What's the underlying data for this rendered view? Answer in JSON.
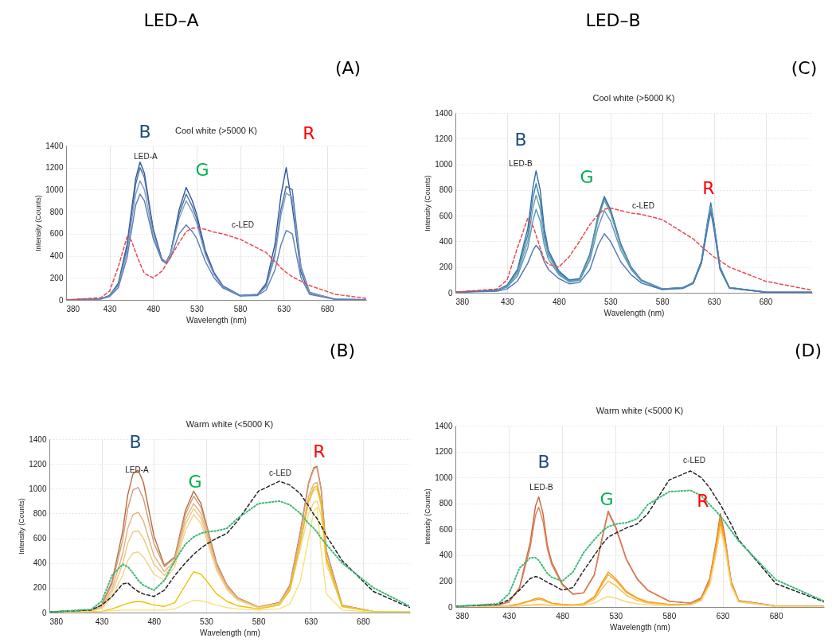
{
  "chart_data": [
    {
      "type": "line",
      "title": "Cool white (>5000 K)",
      "xlabel": "Wavelength (nm)",
      "ylabel": "Intensity (Counts)",
      "xlim": [
        380,
        725
      ],
      "xticks": [
        380,
        430,
        480,
        530,
        580,
        630,
        680
      ],
      "ylim": [
        0,
        1400
      ],
      "yticks": [
        0,
        200,
        400,
        600,
        800,
        1000,
        1200,
        1400
      ],
      "grid": true,
      "annotations": [
        "B",
        "G",
        "R",
        "LED-A",
        "c-LED",
        "LED–A",
        "(A)"
      ],
      "x": [
        380,
        420,
        430,
        440,
        450,
        455,
        460,
        465,
        470,
        480,
        490,
        495,
        500,
        510,
        518,
        525,
        530,
        540,
        550,
        560,
        580,
        600,
        610,
        620,
        627,
        633,
        640,
        650,
        660,
        690,
        725
      ],
      "series": [
        {
          "color": "#2f5597",
          "values": [
            0,
            10,
            40,
            150,
            500,
            800,
            1100,
            1250,
            1150,
            650,
            370,
            340,
            420,
            820,
            1020,
            900,
            780,
            450,
            250,
            130,
            40,
            50,
            150,
            500,
            950,
            1200,
            850,
            250,
            60,
            5,
            2
          ]
        },
        {
          "color": "#4a6fa5",
          "values": [
            0,
            10,
            40,
            140,
            470,
            760,
            1050,
            1200,
            1110,
            640,
            370,
            345,
            420,
            780,
            960,
            850,
            740,
            430,
            240,
            125,
            40,
            45,
            130,
            420,
            820,
            1030,
            1000,
            300,
            70,
            5,
            2
          ]
        },
        {
          "color": "#7f9cc7",
          "values": [
            0,
            10,
            35,
            130,
            430,
            700,
            960,
            1080,
            1000,
            590,
            360,
            345,
            410,
            740,
            900,
            800,
            700,
            410,
            230,
            120,
            38,
            45,
            120,
            390,
            770,
            970,
            930,
            280,
            65,
            5,
            2
          ]
        },
        {
          "color": "#5b7fb5",
          "values": [
            0,
            8,
            30,
            110,
            380,
            620,
            860,
            960,
            900,
            560,
            360,
            330,
            380,
            600,
            680,
            620,
            560,
            350,
            200,
            110,
            35,
            40,
            90,
            270,
            500,
            630,
            600,
            200,
            50,
            4,
            2
          ]
        },
        {
          "color": "#e8474c",
          "line_style": "dashed",
          "values": [
            0,
            20,
            80,
            300,
            570,
            540,
            430,
            330,
            240,
            200,
            260,
            320,
            390,
            520,
            620,
            650,
            655,
            640,
            615,
            600,
            550,
            470,
            430,
            350,
            290,
            250,
            210,
            170,
            130,
            50,
            15
          ]
        }
      ]
    },
    {
      "type": "line",
      "title": "Cool white (>5000 K)",
      "xlabel": "Wavelength (nm)",
      "ylabel": "Intensity (Counts)",
      "xlim": [
        380,
        725
      ],
      "xticks": [
        380,
        430,
        480,
        530,
        580,
        630,
        680
      ],
      "ylim": [
        0,
        1400
      ],
      "yticks": [
        0,
        200,
        400,
        600,
        800,
        1000,
        1200,
        1400
      ],
      "grid": true,
      "annotations": [
        "B",
        "G",
        "R",
        "LED-B",
        "c-LED",
        "LED–B",
        "(C)"
      ],
      "x": [
        380,
        420,
        430,
        440,
        450,
        455,
        458,
        462,
        466,
        470,
        480,
        490,
        500,
        510,
        518,
        524,
        530,
        540,
        550,
        560,
        580,
        600,
        610,
        618,
        624,
        627,
        630,
        636,
        645,
        680,
        725
      ],
      "series": [
        {
          "color": "#2e6da4",
          "values": [
            5,
            20,
            60,
            180,
            500,
            820,
            950,
            800,
            500,
            330,
            170,
            100,
            110,
            300,
            600,
            750,
            650,
            380,
            200,
            100,
            30,
            40,
            80,
            250,
            560,
            700,
            550,
            200,
            40,
            5,
            3
          ]
        },
        {
          "color": "#3f7fb5",
          "values": [
            5,
            20,
            55,
            170,
            450,
            740,
            850,
            720,
            460,
            310,
            160,
            95,
            105,
            290,
            590,
            740,
            640,
            370,
            195,
            95,
            30,
            40,
            80,
            245,
            550,
            680,
            540,
            195,
            40,
            5,
            3
          ]
        },
        {
          "color": "#6aa3a0",
          "values": [
            5,
            18,
            50,
            150,
            400,
            660,
            760,
            650,
            420,
            290,
            150,
            90,
            100,
            280,
            570,
            720,
            620,
            360,
            190,
            95,
            30,
            38,
            78,
            240,
            540,
            670,
            530,
            190,
            40,
            5,
            3
          ]
        },
        {
          "color": "#5a93c0",
          "values": [
            5,
            16,
            45,
            130,
            350,
            560,
            650,
            560,
            370,
            260,
            140,
            85,
            95,
            250,
            510,
            640,
            560,
            330,
            180,
            90,
            28,
            36,
            75,
            235,
            525,
            650,
            515,
            185,
            38,
            5,
            3
          ]
        },
        {
          "color": "#4a76b0",
          "values": [
            5,
            12,
            30,
            90,
            230,
            330,
            370,
            330,
            240,
            180,
            110,
            70,
            80,
            180,
            370,
            460,
            400,
            240,
            140,
            75,
            25,
            34,
            72,
            230,
            510,
            630,
            500,
            180,
            36,
            5,
            3
          ]
        },
        {
          "color": "#e8474c",
          "line_style": "dashed",
          "values": [
            5,
            30,
            100,
            350,
            580,
            520,
            450,
            350,
            260,
            220,
            200,
            280,
            400,
            530,
            610,
            650,
            660,
            640,
            620,
            610,
            570,
            470,
            420,
            360,
            320,
            300,
            280,
            250,
            200,
            90,
            20
          ]
        }
      ]
    },
    {
      "type": "line",
      "title": "Warm white (<5000 K)",
      "xlabel": "Wavelength (nm)",
      "ylabel": "Intensity (Counts)",
      "xlim": [
        380,
        725
      ],
      "xticks": [
        380,
        430,
        480,
        530,
        580,
        630,
        680
      ],
      "ylim": [
        0,
        1400
      ],
      "yticks": [
        0,
        200,
        400,
        600,
        800,
        1000,
        1200,
        1400
      ],
      "grid": true,
      "annotations": [
        "B",
        "G",
        "R",
        "LED-A",
        "c-LED",
        "(B)"
      ],
      "x": [
        380,
        420,
        430,
        440,
        450,
        455,
        460,
        465,
        470,
        480,
        490,
        500,
        510,
        518,
        525,
        530,
        540,
        550,
        560,
        580,
        600,
        610,
        620,
        628,
        633,
        636,
        640,
        645,
        660,
        690,
        725
      ],
      "series": [
        {
          "color": "#b86b3c",
          "values": [
            5,
            20,
            60,
            250,
            650,
            950,
            1120,
            1150,
            1050,
            620,
            380,
            450,
            820,
            980,
            880,
            720,
            400,
            220,
            120,
            45,
            80,
            220,
            650,
            1050,
            1170,
            1180,
            1000,
            500,
            60,
            8,
            5
          ]
        },
        {
          "color": "#d39a7a",
          "values": [
            5,
            18,
            55,
            230,
            580,
            840,
            990,
            1010,
            920,
            560,
            370,
            440,
            790,
            940,
            850,
            700,
            390,
            215,
            118,
            44,
            78,
            215,
            640,
            1040,
            1160,
            1170,
            990,
            495,
            58,
            8,
            5
          ]
        },
        {
          "color": "#e2b27c",
          "values": [
            5,
            16,
            45,
            190,
            470,
            680,
            790,
            810,
            740,
            460,
            330,
            420,
            750,
            880,
            800,
            660,
            370,
            205,
            112,
            42,
            75,
            200,
            590,
            940,
            1040,
            1050,
            900,
            450,
            55,
            8,
            5
          ]
        },
        {
          "color": "#efc77e",
          "values": [
            5,
            14,
            40,
            160,
            390,
            560,
            650,
            660,
            600,
            390,
            300,
            400,
            710,
            840,
            760,
            630,
            355,
            195,
            108,
            40,
            72,
            190,
            560,
            890,
            990,
            1000,
            860,
            430,
            52,
            8,
            5
          ]
        },
        {
          "color": "#f2d28a",
          "values": [
            5,
            12,
            32,
            125,
            300,
            420,
            480,
            490,
            450,
            310,
            260,
            370,
            660,
            790,
            720,
            600,
            340,
            185,
            100,
            38,
            68,
            175,
            510,
            800,
            890,
            900,
            780,
            390,
            48,
            8,
            5
          ]
        },
        {
          "color": "#eec000",
          "values": [
            2,
            5,
            10,
            30,
            60,
            75,
            85,
            90,
            85,
            60,
            50,
            80,
            220,
            330,
            310,
            260,
            150,
            90,
            55,
            30,
            60,
            180,
            560,
            900,
            1010,
            1020,
            880,
            430,
            50,
            6,
            3
          ]
        },
        {
          "color": "#f7e27a",
          "values": [
            2,
            4,
            8,
            15,
            20,
            20,
            20,
            20,
            20,
            20,
            20,
            30,
            70,
            100,
            95,
            85,
            60,
            40,
            30,
            20,
            30,
            70,
            250,
            600,
            820,
            850,
            500,
            150,
            20,
            5,
            3
          ]
        },
        {
          "color": "#222222",
          "line_style": "dashed",
          "values": [
            5,
            20,
            60,
            130,
            230,
            240,
            200,
            170,
            150,
            130,
            180,
            300,
            400,
            470,
            520,
            550,
            600,
            640,
            740,
            980,
            1060,
            1030,
            960,
            860,
            790,
            760,
            700,
            620,
            420,
            170,
            40
          ]
        },
        {
          "color": "#3cb878",
          "line_style": "dotted",
          "values": [
            5,
            25,
            90,
            300,
            390,
            370,
            320,
            260,
            220,
            180,
            260,
            420,
            550,
            610,
            640,
            650,
            660,
            680,
            760,
            880,
            900,
            870,
            800,
            720,
            680,
            650,
            600,
            550,
            400,
            200,
            50
          ]
        }
      ]
    },
    {
      "type": "line",
      "title": "Warm white (<5000 K)",
      "xlabel": "Wavelength (nm)",
      "ylabel": "Intensity (Counts)",
      "xlim": [
        380,
        725
      ],
      "xticks": [
        380,
        430,
        480,
        530,
        580,
        630,
        680
      ],
      "ylim": [
        0,
        1400
      ],
      "yticks": [
        0,
        200,
        400,
        600,
        800,
        1000,
        1200,
        1400
      ],
      "grid": true,
      "annotations": [
        "B",
        "G",
        "R",
        "LED-B",
        "c-LED",
        "(D)"
      ],
      "x": [
        380,
        420,
        430,
        440,
        450,
        455,
        458,
        462,
        466,
        470,
        480,
        490,
        500,
        510,
        518,
        523,
        530,
        540,
        550,
        560,
        580,
        600,
        610,
        618,
        624,
        628,
        632,
        638,
        645,
        680,
        725
      ],
      "series": [
        {
          "color": "#c8643a",
          "values": [
            5,
            15,
            40,
            150,
            500,
            780,
            850,
            720,
            480,
            350,
            180,
            100,
            110,
            250,
            560,
            740,
            620,
            370,
            220,
            130,
            45,
            30,
            70,
            220,
            500,
            720,
            560,
            200,
            50,
            8,
            5
          ]
        },
        {
          "color": "#d9805a",
          "values": [
            5,
            15,
            38,
            140,
            460,
            710,
            770,
            660,
            450,
            330,
            170,
            98,
            108,
            245,
            550,
            730,
            610,
            365,
            215,
            128,
            44,
            30,
            70,
            210,
            480,
            680,
            530,
            190,
            48,
            8,
            5
          ]
        },
        {
          "color": "#f29b1c",
          "values": [
            2,
            5,
            10,
            25,
            50,
            65,
            70,
            62,
            45,
            30,
            20,
            15,
            25,
            80,
            200,
            270,
            220,
            120,
            70,
            40,
            20,
            20,
            60,
            200,
            480,
            690,
            540,
            190,
            45,
            6,
            3
          ]
        },
        {
          "color": "#f5a623",
          "values": [
            2,
            5,
            9,
            22,
            45,
            55,
            60,
            53,
            40,
            28,
            18,
            14,
            22,
            72,
            185,
            250,
            205,
            112,
            65,
            38,
            19,
            19,
            55,
            190,
            450,
            650,
            510,
            180,
            43,
            6,
            3
          ]
        },
        {
          "color": "#f8c04a",
          "values": [
            1,
            3,
            5,
            10,
            15,
            18,
            20,
            18,
            15,
            12,
            10,
            10,
            18,
            60,
            150,
            200,
            165,
            90,
            52,
            30,
            16,
            17,
            50,
            175,
            420,
            610,
            480,
            170,
            40,
            5,
            3
          ]
        },
        {
          "color": "#fad47a",
          "values": [
            1,
            3,
            4,
            8,
            12,
            14,
            15,
            14,
            12,
            10,
            9,
            9,
            12,
            30,
            65,
            80,
            68,
            40,
            25,
            16,
            10,
            15,
            48,
            170,
            410,
            600,
            470,
            165,
            40,
            5,
            3
          ]
        },
        {
          "color": "#222222",
          "line_style": "dashed",
          "values": [
            5,
            20,
            55,
            130,
            220,
            235,
            230,
            210,
            190,
            175,
            130,
            150,
            280,
            400,
            490,
            540,
            570,
            610,
            640,
            720,
            980,
            1050,
            1000,
            920,
            840,
            790,
            730,
            640,
            520,
            180,
            40
          ]
        },
        {
          "color": "#3cb878",
          "line_style": "dotted",
          "values": [
            5,
            25,
            100,
            300,
            380,
            380,
            360,
            310,
            260,
            230,
            200,
            270,
            420,
            520,
            590,
            620,
            640,
            650,
            680,
            790,
            890,
            900,
            860,
            790,
            740,
            700,
            660,
            590,
            510,
            210,
            45
          ]
        }
      ]
    }
  ]
}
